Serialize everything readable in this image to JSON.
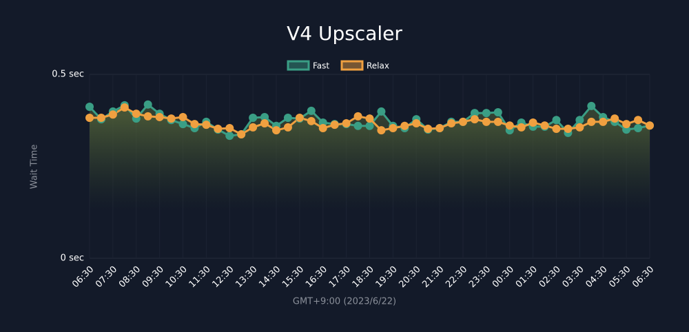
{
  "chart_data": {
    "type": "line",
    "title": "V4 Upscaler",
    "xlabel": "GMT+9:00 (2023/6/22)",
    "ylabel": "Wait Time",
    "categories": [
      "06:30",
      null,
      "07:30",
      null,
      "08:30",
      null,
      "09:30",
      null,
      "10:30",
      null,
      "11:30",
      null,
      "12:30",
      null,
      "13:30",
      null,
      "14:30",
      null,
      "15:30",
      null,
      "16:30",
      null,
      "17:30",
      null,
      "18:30",
      null,
      "19:30",
      null,
      "20:30",
      null,
      "21:30",
      null,
      "22:30",
      null,
      "23:30",
      null,
      "00:30",
      null,
      "01:30",
      null,
      "02:30",
      null,
      "03:30",
      null,
      "04:30",
      null,
      "05:30",
      null,
      "06:30"
    ],
    "series": [
      {
        "name": "Fast",
        "color": "#3a9e85",
        "values": [
          0.412,
          0.378,
          0.399,
          0.416,
          0.38,
          0.418,
          0.393,
          0.376,
          0.365,
          0.354,
          0.371,
          0.35,
          0.333,
          0.337,
          0.382,
          0.384,
          0.36,
          0.382,
          0.38,
          0.401,
          0.369,
          0.365,
          0.365,
          0.36,
          0.36,
          0.399,
          0.36,
          0.354,
          0.378,
          0.35,
          0.354,
          0.371,
          0.371,
          0.395,
          0.395,
          0.397,
          0.348,
          0.369,
          0.358,
          0.358,
          0.376,
          0.341,
          0.376,
          0.414,
          0.384,
          0.371,
          0.35,
          0.354,
          0.361
        ]
      },
      {
        "name": "Relax",
        "color": "#f0a040",
        "values": [
          0.382,
          0.382,
          0.391,
          0.41,
          0.393,
          0.386,
          0.384,
          0.38,
          0.384,
          0.365,
          0.363,
          0.352,
          0.354,
          0.337,
          0.356,
          0.367,
          0.348,
          0.356,
          0.382,
          0.373,
          0.354,
          0.363,
          0.367,
          0.386,
          0.38,
          0.348,
          0.354,
          0.36,
          0.367,
          0.352,
          0.354,
          0.367,
          0.371,
          0.378,
          0.371,
          0.371,
          0.361,
          0.356,
          0.369,
          0.361,
          0.352,
          0.352,
          0.356,
          0.371,
          0.371,
          0.38,
          0.365,
          0.376,
          0.361
        ]
      }
    ],
    "ylim": [
      0,
      0.5
    ],
    "yticks": [
      {
        "value": 0,
        "label": "0 sec"
      },
      {
        "value": 0.5,
        "label": "0.5 sec"
      }
    ],
    "grid": true,
    "legend": "top"
  }
}
